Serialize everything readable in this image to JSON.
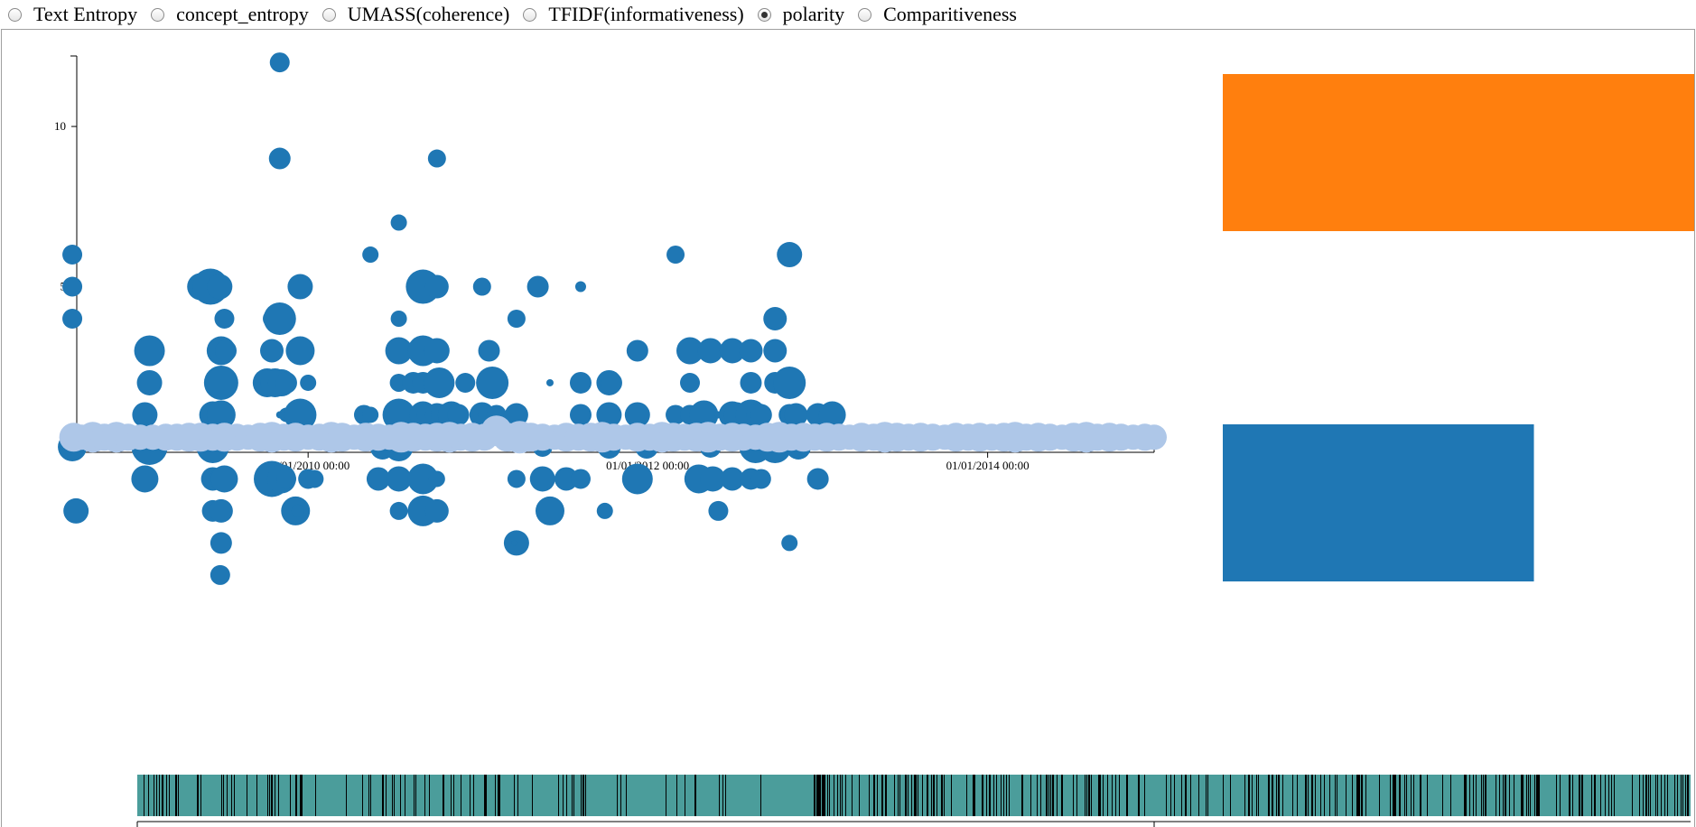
{
  "metrics": {
    "options": [
      {
        "label": "Text Entropy",
        "checked": false
      },
      {
        "label": "concept_entropy",
        "checked": false
      },
      {
        "label": "UMASS(coherence)",
        "checked": false
      },
      {
        "label": "TFIDF(informativeness)",
        "checked": false
      },
      {
        "label": "polarity",
        "checked": true
      },
      {
        "label": "Comparitiveness",
        "checked": false
      }
    ]
  },
  "chart_data": {
    "type": "scatter",
    "x_type": "time",
    "x_range": [
      "2008-08-08",
      "2014-12-25"
    ],
    "ylim": [
      -4.2,
      12.2
    ],
    "y_ticks": [
      0,
      5,
      10
    ],
    "x_ticks": [
      {
        "date": "2010-01-01",
        "label": "01/01/2010 00:00"
      },
      {
        "date": "2012-01-01",
        "label": "01/01/2012 00:00"
      },
      {
        "date": "2014-01-01",
        "label": "01/01/2014 00:00"
      }
    ],
    "colors": {
      "dark": "#1f77b4",
      "light": "#aec7e8",
      "orange": "#ff7f0e",
      "teal": "#4b9d9b"
    },
    "dark_points": [
      [
        "2008-08-12",
        6,
        11
      ],
      [
        "2008-08-12",
        5,
        11
      ],
      [
        "2008-08-12",
        4,
        11
      ],
      [
        "2008-08-12",
        0,
        16
      ],
      [
        "2008-08-12",
        -2,
        9
      ],
      [
        "2008-08-20",
        -2,
        14
      ],
      [
        "2009-01-20",
        3,
        12
      ],
      [
        "2009-01-25",
        3,
        17
      ],
      [
        "2009-01-25",
        2,
        14
      ],
      [
        "2009-01-15",
        1,
        14
      ],
      [
        "2009-01-15",
        -1,
        15
      ],
      [
        "2009-01-25",
        0,
        20
      ],
      [
        "2009-05-15",
        5,
        15
      ],
      [
        "2009-06-05",
        5,
        20
      ],
      [
        "2009-06-25",
        5,
        14
      ],
      [
        "2009-06-10",
        1,
        15
      ],
      [
        "2009-06-28",
        1,
        16
      ],
      [
        "2009-06-10",
        -1,
        13
      ],
      [
        "2009-06-28",
        -1,
        13
      ],
      [
        "2009-07-05",
        -1,
        15
      ],
      [
        "2009-06-10",
        -2,
        12
      ],
      [
        "2009-06-28",
        -2,
        13
      ],
      [
        "2009-06-25",
        3,
        8
      ],
      [
        "2009-06-28",
        3,
        16
      ],
      [
        "2009-07-08",
        3,
        12
      ],
      [
        "2009-06-28",
        2,
        19
      ],
      [
        "2009-07-05",
        4,
        11
      ],
      [
        "2009-06-28",
        -3,
        12
      ],
      [
        "2009-06-26",
        -4,
        11
      ],
      [
        "2009-06-10",
        0,
        18
      ],
      [
        "2009-10-15",
        4,
        10
      ],
      [
        "2009-11-01",
        4,
        18
      ],
      [
        "2009-11-01",
        12,
        11
      ],
      [
        "2009-11-01",
        9,
        12
      ],
      [
        "2009-10-05",
        2,
        16
      ],
      [
        "2009-10-22",
        2,
        16
      ],
      [
        "2009-11-05",
        2,
        15
      ],
      [
        "2009-11-15",
        2,
        12
      ],
      [
        "2009-10-15",
        3,
        13
      ],
      [
        "2009-11-01",
        1,
        4
      ],
      [
        "2009-11-15",
        1,
        8
      ],
      [
        "2009-10-15",
        -1,
        20
      ],
      [
        "2009-11-05",
        -1,
        16
      ],
      [
        "2009-11-15",
        -1,
        11
      ],
      [
        "2009-12-05",
        -2,
        16
      ],
      [
        "2009-12-10",
        -2,
        7
      ],
      [
        "2009-12-15",
        5,
        14
      ],
      [
        "2009-12-15",
        3,
        16
      ],
      [
        "2009-12-15",
        1,
        18
      ],
      [
        "2010-01-01",
        2,
        9
      ],
      [
        "2010-01-01",
        -1,
        11
      ],
      [
        "2010-01-15",
        -1,
        10
      ],
      [
        "2010-05-01",
        1,
        11
      ],
      [
        "2010-05-15",
        1,
        9
      ],
      [
        "2010-05-15",
        6,
        9
      ],
      [
        "2010-06-01",
        -1,
        13
      ],
      [
        "2010-06-10",
        0,
        14
      ],
      [
        "2010-07-15",
        3,
        15
      ],
      [
        "2010-07-15",
        1,
        18
      ],
      [
        "2010-07-15",
        0,
        16
      ],
      [
        "2010-07-15",
        4,
        9
      ],
      [
        "2010-07-15",
        2,
        10
      ],
      [
        "2010-07-15",
        -1,
        14
      ],
      [
        "2010-07-15",
        -2,
        10
      ],
      [
        "2010-07-15",
        7,
        9
      ],
      [
        "2010-08-15",
        2,
        12
      ],
      [
        "2010-08-30",
        2,
        8
      ],
      [
        "2010-09-05",
        5,
        19
      ],
      [
        "2010-09-05",
        3,
        17
      ],
      [
        "2010-09-05",
        1,
        15
      ],
      [
        "2010-09-05",
        -1,
        17
      ],
      [
        "2010-09-05",
        -2,
        17
      ],
      [
        "2010-09-05",
        2,
        12
      ],
      [
        "2010-09-15",
        1,
        12
      ],
      [
        "2010-10-05",
        9,
        10
      ],
      [
        "2010-10-05",
        5,
        13
      ],
      [
        "2010-10-05",
        3,
        14
      ],
      [
        "2010-10-10",
        2,
        17
      ],
      [
        "2010-10-05",
        1,
        13
      ],
      [
        "2010-10-05",
        -1,
        9
      ],
      [
        "2010-10-05",
        -2,
        13
      ],
      [
        "2010-10-15",
        1,
        12
      ],
      [
        "2010-11-05",
        1,
        15
      ],
      [
        "2010-11-20",
        1,
        12
      ],
      [
        "2010-12-05",
        2,
        11
      ],
      [
        "2011-01-10",
        5,
        10
      ],
      [
        "2011-01-10",
        1,
        14
      ],
      [
        "2011-01-20",
        1,
        10
      ],
      [
        "2011-01-25",
        3,
        12
      ],
      [
        "2011-02-01",
        2,
        18
      ],
      [
        "2011-02-10",
        1,
        11
      ],
      [
        "2011-03-25",
        1,
        13
      ],
      [
        "2011-03-25",
        4,
        10
      ],
      [
        "2011-03-25",
        -1,
        10
      ],
      [
        "2011-03-25",
        -3,
        14
      ],
      [
        "2011-03-20",
        -3,
        3
      ],
      [
        "2011-05-10",
        5,
        12
      ],
      [
        "2011-05-20",
        -1,
        14
      ],
      [
        "2011-05-20",
        0,
        11
      ],
      [
        "2011-06-05",
        2,
        4
      ],
      [
        "2011-06-05",
        -2,
        16
      ],
      [
        "2011-07-10",
        -1,
        13
      ],
      [
        "2011-08-10",
        5,
        6
      ],
      [
        "2011-08-10",
        2,
        12
      ],
      [
        "2011-08-10",
        1,
        12
      ],
      [
        "2011-08-10",
        -1,
        11
      ],
      [
        "2011-10-10",
        2,
        14
      ],
      [
        "2011-10-10",
        1,
        14
      ],
      [
        "2011-10-10",
        0,
        13
      ],
      [
        "2011-10-01",
        -2,
        9
      ],
      [
        "2011-10-15",
        2,
        12
      ],
      [
        "2011-12-10",
        1,
        14
      ],
      [
        "2011-12-10",
        -1,
        17
      ],
      [
        "2011-12-10",
        3,
        12
      ],
      [
        "2011-12-30",
        0,
        13
      ],
      [
        "2012-03-01",
        6,
        10
      ],
      [
        "2012-03-01",
        1,
        11
      ],
      [
        "2012-04-01",
        2,
        11
      ],
      [
        "2012-04-01",
        1,
        11
      ],
      [
        "2012-04-01",
        3,
        15
      ],
      [
        "2012-04-20",
        -1,
        16
      ],
      [
        "2012-05-01",
        1,
        16
      ],
      [
        "2012-05-15",
        3,
        14
      ],
      [
        "2012-05-20",
        -1,
        14
      ],
      [
        "2012-05-15",
        0,
        12
      ],
      [
        "2012-06-01",
        -2,
        11
      ],
      [
        "2012-06-01",
        1,
        4
      ],
      [
        "2012-07-01",
        1,
        15
      ],
      [
        "2012-07-01",
        3,
        14
      ],
      [
        "2012-07-01",
        -1,
        13
      ],
      [
        "2012-07-10",
        1,
        14
      ],
      [
        "2012-08-10",
        2,
        12
      ],
      [
        "2012-08-10",
        3,
        13
      ],
      [
        "2012-08-10",
        1,
        17
      ],
      [
        "2012-08-10",
        -1,
        12
      ],
      [
        "2012-08-20",
        0,
        18
      ],
      [
        "2012-08-25",
        1,
        13
      ],
      [
        "2012-09-01",
        1,
        12
      ],
      [
        "2012-09-01",
        -1,
        11
      ],
      [
        "2012-10-01",
        4,
        13
      ],
      [
        "2012-10-01",
        2,
        12
      ],
      [
        "2012-10-01",
        3,
        13
      ],
      [
        "2012-10-01",
        0,
        18
      ],
      [
        "2012-11-01",
        6,
        14
      ],
      [
        "2012-11-01",
        2,
        18
      ],
      [
        "2012-11-01",
        1,
        12
      ],
      [
        "2012-11-01",
        -3,
        9
      ],
      [
        "2012-11-15",
        1,
        13
      ],
      [
        "2012-11-20",
        0,
        14
      ],
      [
        "2013-01-01",
        1,
        13
      ],
      [
        "2013-01-01",
        -1,
        12
      ],
      [
        "2013-02-01",
        1,
        15
      ]
    ],
    "light_points": [
      [
        "2008-08-15",
        0.3,
        16
      ],
      [
        "2008-09-01",
        0.3,
        14
      ],
      [
        "2008-09-25",
        0.3,
        17
      ],
      [
        "2008-10-20",
        0.3,
        15
      ],
      [
        "2008-11-15",
        0.3,
        17
      ],
      [
        "2008-12-10",
        0.3,
        15
      ],
      [
        "2009-01-05",
        0.3,
        14
      ],
      [
        "2009-02-01",
        0.3,
        14
      ],
      [
        "2009-03-01",
        0.3,
        15
      ],
      [
        "2009-03-25",
        0.3,
        15
      ],
      [
        "2009-04-20",
        0.3,
        16
      ],
      [
        "2009-05-15",
        0.3,
        16
      ],
      [
        "2009-06-10",
        0.3,
        15
      ],
      [
        "2009-07-05",
        0.3,
        16
      ],
      [
        "2009-08-01",
        0.3,
        15
      ],
      [
        "2009-08-25",
        0.3,
        14
      ],
      [
        "2009-09-20",
        0.3,
        16
      ],
      [
        "2009-10-15",
        0.3,
        17
      ],
      [
        "2009-11-10",
        0.3,
        15
      ],
      [
        "2009-12-05",
        0.3,
        16
      ],
      [
        "2010-01-01",
        0.3,
        14
      ],
      [
        "2010-01-25",
        0.3,
        15
      ],
      [
        "2010-02-20",
        0.3,
        17
      ],
      [
        "2010-03-15",
        0.3,
        16
      ],
      [
        "2010-04-10",
        0.3,
        14
      ],
      [
        "2010-05-05",
        0.3,
        16
      ],
      [
        "2010-06-01",
        0.3,
        15
      ],
      [
        "2010-06-25",
        0.3,
        14
      ],
      [
        "2010-07-20",
        0.3,
        17
      ],
      [
        "2010-08-15",
        0.3,
        16
      ],
      [
        "2010-09-10",
        0.3,
        15
      ],
      [
        "2010-10-05",
        0.3,
        16
      ],
      [
        "2010-11-01",
        0.3,
        17
      ],
      [
        "2010-11-25",
        0.3,
        15
      ],
      [
        "2010-12-20",
        0.3,
        16
      ],
      [
        "2011-01-15",
        0.3,
        15
      ],
      [
        "2011-02-10",
        0.5,
        17
      ],
      [
        "2011-03-05",
        0.3,
        16
      ],
      [
        "2011-04-01",
        0.3,
        18
      ],
      [
        "2011-04-25",
        0.3,
        16
      ],
      [
        "2011-05-20",
        0.3,
        15
      ],
      [
        "2011-06-15",
        0.3,
        14
      ],
      [
        "2011-07-10",
        0.3,
        16
      ],
      [
        "2011-08-05",
        0.3,
        15
      ],
      [
        "2011-09-01",
        0.3,
        16
      ],
      [
        "2011-09-25",
        0.3,
        17
      ],
      [
        "2011-10-20",
        0.3,
        15
      ],
      [
        "2011-11-15",
        0.3,
        14
      ],
      [
        "2011-12-10",
        0.3,
        16
      ],
      [
        "2012-01-05",
        0.3,
        15
      ],
      [
        "2012-02-01",
        0.3,
        17
      ],
      [
        "2012-02-25",
        0.3,
        16
      ],
      [
        "2012-03-20",
        0.3,
        15
      ],
      [
        "2012-04-15",
        0.3,
        16
      ],
      [
        "2012-05-10",
        0.3,
        17
      ],
      [
        "2012-06-05",
        0.3,
        15
      ],
      [
        "2012-07-01",
        0.3,
        16
      ],
      [
        "2012-07-25",
        0.3,
        15
      ],
      [
        "2012-08-20",
        0.3,
        14
      ],
      [
        "2012-09-15",
        0.3,
        16
      ],
      [
        "2012-10-10",
        0.3,
        17
      ],
      [
        "2012-11-05",
        0.3,
        15
      ],
      [
        "2012-12-01",
        0.3,
        16
      ],
      [
        "2012-12-25",
        0.3,
        15
      ],
      [
        "2013-01-20",
        0.3,
        16
      ],
      [
        "2013-02-15",
        0.3,
        15
      ],
      [
        "2013-03-10",
        0.3,
        14
      ],
      [
        "2013-04-05",
        0.3,
        16
      ],
      [
        "2013-05-01",
        0.3,
        15
      ],
      [
        "2013-05-25",
        0.3,
        17
      ],
      [
        "2013-06-20",
        0.3,
        16
      ],
      [
        "2013-07-15",
        0.3,
        15
      ],
      [
        "2013-08-10",
        0.3,
        16
      ],
      [
        "2013-09-05",
        0.3,
        15
      ],
      [
        "2013-10-01",
        0.3,
        14
      ],
      [
        "2013-10-25",
        0.3,
        16
      ],
      [
        "2013-11-20",
        0.3,
        15
      ],
      [
        "2013-12-15",
        0.3,
        16
      ],
      [
        "2014-01-10",
        0.3,
        15
      ],
      [
        "2014-02-05",
        0.3,
        16
      ],
      [
        "2014-03-01",
        0.3,
        17
      ],
      [
        "2014-03-25",
        0.3,
        15
      ],
      [
        "2014-04-20",
        0.3,
        16
      ],
      [
        "2014-05-15",
        0.3,
        15
      ],
      [
        "2014-06-10",
        0.3,
        14
      ],
      [
        "2014-07-05",
        0.3,
        16
      ],
      [
        "2014-08-01",
        0.3,
        17
      ],
      [
        "2014-08-25",
        0.3,
        15
      ],
      [
        "2014-09-20",
        0.3,
        16
      ],
      [
        "2014-10-15",
        0.3,
        15
      ],
      [
        "2014-11-10",
        0.3,
        14
      ],
      [
        "2014-12-05",
        0.3,
        15
      ],
      [
        "2014-12-25",
        0.3,
        14
      ]
    ],
    "legend_bars": [
      {
        "color": "#ff7f0e",
        "fraction": 1.0
      },
      {
        "color": "#1f77b4",
        "fraction": 0.66
      }
    ],
    "brush_axis_range": [
      "2008-08-08",
      "2014-12-25"
    ]
  }
}
